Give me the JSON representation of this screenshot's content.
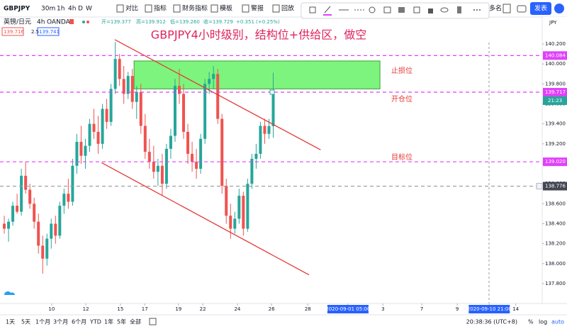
{
  "toolbar": {
    "symbol": "GBPJPY",
    "intervals": [
      "30m",
      "1h",
      "4h",
      "D",
      "W"
    ],
    "buttons": [
      "对比",
      "指标",
      "财务指标",
      "模板",
      "警报",
      "回放"
    ],
    "layout": "多名",
    "publish": "发表"
  },
  "legend": {
    "name": "英镑/日元",
    "interval": "4h",
    "source": "OANDA",
    "ohlc": [
      "开=139.377",
      "高=139.912",
      "低=139.260",
      "收=139.729"
    ],
    "change": "+0.351 (+0.25%)",
    "row2": [
      "139.716",
      "2.5",
      "139.741"
    ]
  },
  "bottom_bar": {
    "ranges": [
      "1天",
      "5天",
      "1个月",
      "3个月",
      "6个月",
      "YTD",
      "1年",
      "5年",
      "全部"
    ],
    "clock": "20:38:36 (UTC+8)",
    "options": [
      "%",
      "log",
      "auto"
    ]
  },
  "chart_data": {
    "type": "candlestick",
    "title": "GBPJPY4小时级别，结构位+供给区，做空",
    "currency": "JPY",
    "up_color": "#26a69a",
    "down_color": "#ef5350",
    "xlim": [
      -1,
      126
    ],
    "ylim": [
      137.601,
      140.47
    ],
    "yticks": [
      {
        "value": 140.2,
        "label": "140.200"
      },
      {
        "value": 140.0,
        "label": "140.000"
      },
      {
        "value": 139.8,
        "label": "139.800"
      },
      {
        "value": 139.6,
        "label": "139.600"
      },
      {
        "value": 139.4,
        "label": "139.400"
      },
      {
        "value": 139.2,
        "label": "139.200"
      },
      {
        "value": 139.0,
        "label": "139.000"
      },
      {
        "value": 138.8,
        "label": "138.800"
      },
      {
        "value": 138.6,
        "label": "138.600"
      },
      {
        "value": 138.4,
        "label": "138.400"
      },
      {
        "value": 138.2,
        "label": "138.200"
      },
      {
        "value": 138.0,
        "label": "138.000"
      },
      {
        "value": 137.8,
        "label": "137.800"
      }
    ],
    "xticks": [
      {
        "value": 11.1,
        "label": "10"
      },
      {
        "value": 19.1,
        "label": "12"
      },
      {
        "value": 27.2,
        "label": "15"
      },
      {
        "value": 32.9,
        "label": "17"
      },
      {
        "value": 40.8,
        "label": "19"
      },
      {
        "value": 46.5,
        "label": "22"
      },
      {
        "value": 54.6,
        "label": "24"
      },
      {
        "value": 62.6,
        "label": "26"
      },
      {
        "value": 71.1,
        "label": "28"
      },
      {
        "value": 80.5,
        "label": "2020-09-01 05:00",
        "highlighted": true
      },
      {
        "value": 88.7,
        "label": "3"
      },
      {
        "value": 97.8,
        "label": "7"
      },
      {
        "value": 106.1,
        "label": "9"
      },
      {
        "value": 113.6,
        "label": "2020-09-10 21:00",
        "highlighted": true
      },
      {
        "value": 119.8,
        "label": "14"
      }
    ],
    "candles": [
      [
        138.4,
        138.48,
        138.3,
        138.35
      ],
      [
        138.35,
        138.45,
        138.22,
        138.42
      ],
      [
        138.42,
        138.62,
        138.38,
        138.58
      ],
      [
        138.58,
        138.7,
        138.5,
        138.52
      ],
      [
        138.52,
        138.95,
        138.48,
        138.88
      ],
      [
        138.88,
        139.02,
        138.7,
        138.74
      ],
      [
        138.74,
        138.8,
        138.55,
        138.6
      ],
      [
        138.6,
        138.66,
        138.35,
        138.42
      ],
      [
        138.42,
        138.5,
        138.1,
        138.18
      ],
      [
        138.18,
        138.28,
        137.9,
        138.05
      ],
      [
        138.05,
        138.3,
        137.98,
        138.25
      ],
      [
        138.25,
        138.45,
        138.15,
        138.4
      ],
      [
        138.4,
        138.48,
        138.2,
        138.28
      ],
      [
        138.28,
        138.62,
        138.25,
        138.58
      ],
      [
        138.58,
        138.75,
        138.5,
        138.7
      ],
      [
        138.7,
        138.85,
        138.55,
        138.62
      ],
      [
        138.62,
        139.05,
        138.58,
        138.98
      ],
      [
        138.98,
        139.3,
        138.9,
        139.22
      ],
      [
        139.22,
        139.38,
        139.0,
        139.08
      ],
      [
        139.08,
        139.25,
        138.95,
        139.18
      ],
      [
        139.18,
        139.45,
        139.12,
        139.4
      ],
      [
        139.4,
        139.55,
        139.25,
        139.32
      ],
      [
        139.32,
        139.48,
        139.1,
        139.2
      ],
      [
        139.2,
        139.6,
        139.15,
        139.55
      ],
      [
        139.55,
        139.65,
        139.35,
        139.42
      ],
      [
        139.42,
        139.8,
        139.38,
        139.75
      ],
      [
        139.75,
        140.22,
        139.7,
        140.05
      ],
      [
        140.05,
        140.1,
        139.78,
        139.85
      ],
      [
        139.85,
        139.98,
        139.6,
        139.7
      ],
      [
        139.7,
        139.92,
        139.65,
        139.88
      ],
      [
        139.88,
        139.95,
        139.55,
        139.62
      ],
      [
        139.62,
        139.78,
        139.45,
        139.72
      ],
      [
        139.72,
        139.8,
        139.3,
        139.38
      ],
      [
        139.38,
        139.5,
        139.05,
        139.12
      ],
      [
        139.12,
        139.25,
        138.95,
        139.02
      ],
      [
        139.02,
        139.18,
        138.85,
        138.92
      ],
      [
        138.92,
        139.05,
        138.78,
        138.98
      ],
      [
        138.98,
        139.1,
        138.68,
        138.8
      ],
      [
        138.8,
        139.2,
        138.75,
        139.15
      ],
      [
        139.15,
        139.35,
        139.05,
        139.28
      ],
      [
        139.28,
        139.85,
        139.22,
        139.78
      ],
      [
        139.78,
        139.95,
        139.6,
        139.7
      ],
      [
        139.7,
        139.8,
        139.25,
        139.32
      ],
      [
        139.32,
        139.4,
        139.0,
        139.1
      ],
      [
        139.1,
        139.22,
        138.92,
        139.02
      ],
      [
        139.02,
        139.15,
        138.85,
        138.95
      ],
      [
        138.95,
        139.3,
        138.9,
        139.25
      ],
      [
        139.25,
        139.85,
        139.2,
        139.8
      ],
      [
        139.8,
        139.92,
        139.7,
        139.85
      ],
      [
        139.85,
        139.98,
        139.75,
        139.9
      ],
      [
        139.9,
        139.95,
        139.4,
        139.45
      ],
      [
        139.45,
        139.5,
        138.7,
        138.78
      ],
      [
        138.78,
        138.85,
        138.4,
        138.48
      ],
      [
        138.48,
        138.6,
        138.25,
        138.35
      ],
      [
        138.35,
        138.52,
        138.3,
        138.45
      ],
      [
        138.45,
        138.75,
        138.4,
        138.68
      ],
      [
        138.68,
        138.72,
        138.28,
        138.35
      ],
      [
        138.35,
        138.85,
        138.32,
        138.8
      ],
      [
        138.8,
        139.1,
        138.75,
        139.05
      ],
      [
        139.05,
        139.2,
        138.95,
        139.1
      ],
      [
        139.1,
        139.42,
        139.05,
        139.38
      ],
      [
        139.38,
        139.45,
        139.2,
        139.3
      ],
      [
        139.3,
        139.45,
        139.25,
        139.377
      ],
      [
        139.377,
        139.912,
        139.26,
        139.729
      ]
    ],
    "zone": {
      "top": 140.03,
      "bottom": 139.75,
      "start": 30.4,
      "end": 88,
      "color": "#66f266",
      "border": "#3aa03a"
    },
    "trendlines": [
      {
        "x": [
          25.9,
          74.1
        ],
        "y": [
          140.243,
          139.14
        ],
        "color": "#e53935"
      },
      {
        "x": [
          22.8,
          71.4
        ],
        "y": [
          139.011,
          137.887
        ],
        "color": "#e53935"
      }
    ],
    "hlines": [
      {
        "value": 140.084,
        "label": "140.084",
        "color": "#e040fb",
        "dashed": true
      },
      {
        "value": 139.717,
        "label": "139.717",
        "color": "#e040fb",
        "dashed": true
      },
      {
        "value": 139.02,
        "label": "139.020",
        "color": "#e040fb",
        "dashed": true
      },
      {
        "value": 138.776,
        "label": "138.776",
        "color": "#9598a1",
        "dashed": true
      }
    ],
    "countdown": "21:23",
    "annotations": [
      "止损位",
      "开仓位",
      "目标位"
    ]
  }
}
